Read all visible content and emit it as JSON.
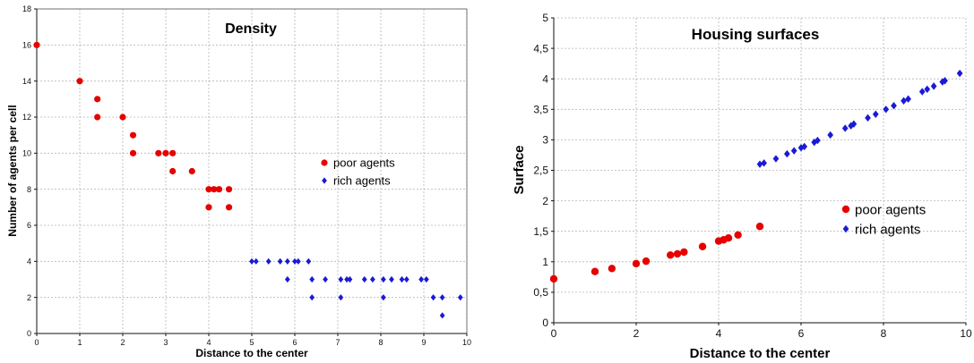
{
  "colors": {
    "poor": "#e60000",
    "rich": "#1a1ad6",
    "grid": "#b5b5b5"
  },
  "chart_data": [
    {
      "type": "scatter",
      "title": "Density",
      "xlabel": "Distance to the center",
      "ylabel": "Number of agents per cell",
      "xlim": [
        0,
        10
      ],
      "ylim": [
        0,
        18
      ],
      "xticks": [
        "0",
        "1",
        "2",
        "3",
        "4",
        "5",
        "6",
        "7",
        "8",
        "9",
        "10"
      ],
      "yticks": [
        "0",
        "2",
        "4",
        "6",
        "8",
        "10",
        "12",
        "14",
        "16",
        "18"
      ],
      "grid": true,
      "legend_position": "right",
      "series": [
        {
          "name": "poor agents",
          "color": "#e60000",
          "marker": "circle",
          "points": [
            [
              0,
              16
            ],
            [
              1,
              14
            ],
            [
              1.41,
              13
            ],
            [
              1.41,
              12
            ],
            [
              2,
              12
            ],
            [
              2.24,
              11
            ],
            [
              2.24,
              10
            ],
            [
              2.83,
              10
            ],
            [
              3,
              10
            ],
            [
              3.16,
              10
            ],
            [
              3.16,
              9
            ],
            [
              3.61,
              9
            ],
            [
              4,
              8
            ],
            [
              4.12,
              8
            ],
            [
              4.24,
              8
            ],
            [
              4.47,
              8
            ],
            [
              4,
              7
            ],
            [
              4.47,
              7
            ]
          ]
        },
        {
          "name": "rich agents",
          "color": "#1a1ad6",
          "marker": "diamond",
          "points": [
            [
              5,
              4
            ],
            [
              5.1,
              4
            ],
            [
              5.39,
              4
            ],
            [
              5.66,
              4
            ],
            [
              5.83,
              4
            ],
            [
              6,
              4
            ],
            [
              6.08,
              4
            ],
            [
              6.32,
              4
            ],
            [
              5.83,
              3
            ],
            [
              6.4,
              3
            ],
            [
              6.71,
              3
            ],
            [
              7.07,
              3
            ],
            [
              7.21,
              3
            ],
            [
              7.28,
              3
            ],
            [
              7.62,
              3
            ],
            [
              7.81,
              3
            ],
            [
              8.06,
              3
            ],
            [
              8.25,
              3
            ],
            [
              8.49,
              3
            ],
            [
              8.6,
              3
            ],
            [
              8.94,
              3
            ],
            [
              9.06,
              3
            ],
            [
              6.4,
              2
            ],
            [
              7.07,
              2
            ],
            [
              8.06,
              2
            ],
            [
              9.22,
              2
            ],
            [
              9.43,
              2
            ],
            [
              9.85,
              2
            ],
            [
              9.43,
              1
            ]
          ]
        }
      ]
    },
    {
      "type": "scatter",
      "title": "Housing surfaces",
      "xlabel": "Distance to the center",
      "ylabel": "Surface",
      "xlim": [
        0,
        10
      ],
      "ylim": [
        0,
        5
      ],
      "xticks": [
        "0",
        "2",
        "4",
        "6",
        "8",
        "10"
      ],
      "yticks": [
        "0",
        "0,5",
        "1",
        "1,5",
        "2",
        "2,5",
        "3",
        "3,5",
        "4",
        "4,5",
        "5"
      ],
      "grid": true,
      "legend_position": "right",
      "series": [
        {
          "name": "poor agents",
          "color": "#e60000",
          "marker": "circle",
          "points": [
            [
              0,
              0.72
            ],
            [
              1,
              0.84
            ],
            [
              1.41,
              0.89
            ],
            [
              2,
              0.97
            ],
            [
              2.24,
              1.01
            ],
            [
              2.83,
              1.11
            ],
            [
              3,
              1.13
            ],
            [
              3.16,
              1.16
            ],
            [
              3.61,
              1.25
            ],
            [
              4,
              1.34
            ],
            [
              4.12,
              1.36
            ],
            [
              4.24,
              1.39
            ],
            [
              4.47,
              1.44
            ],
            [
              5,
              1.58
            ]
          ]
        },
        {
          "name": "rich agents",
          "color": "#1a1ad6",
          "marker": "diamond",
          "points": [
            [
              5,
              2.6
            ],
            [
              5.1,
              2.62
            ],
            [
              5.39,
              2.69
            ],
            [
              5.66,
              2.77
            ],
            [
              5.83,
              2.82
            ],
            [
              6,
              2.87
            ],
            [
              6.08,
              2.89
            ],
            [
              6.32,
              2.96
            ],
            [
              6.4,
              2.99
            ],
            [
              6.71,
              3.08
            ],
            [
              7.07,
              3.19
            ],
            [
              7.21,
              3.23
            ],
            [
              7.28,
              3.26
            ],
            [
              7.62,
              3.36
            ],
            [
              7.81,
              3.42
            ],
            [
              8.06,
              3.5
            ],
            [
              8.25,
              3.56
            ],
            [
              8.49,
              3.64
            ],
            [
              8.6,
              3.67
            ],
            [
              8.94,
              3.79
            ],
            [
              9.06,
              3.83
            ],
            [
              9.22,
              3.88
            ],
            [
              9.43,
              3.95
            ],
            [
              9.49,
              3.97
            ],
            [
              9.85,
              4.09
            ]
          ]
        }
      ]
    }
  ]
}
